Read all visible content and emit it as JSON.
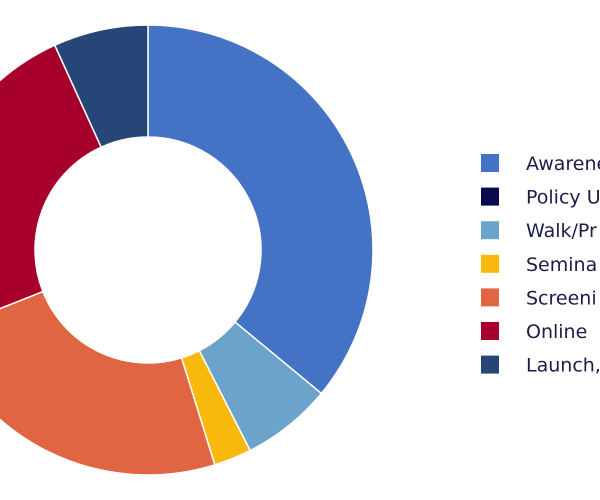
{
  "chart_data": {
    "type": "pie",
    "donut": true,
    "title": "",
    "slices": [
      {
        "label": "Awarenes",
        "value": 36.0,
        "color": "#4472c4"
      },
      {
        "label": "Policy U",
        "value": 0.0,
        "color": "#0b0a4c"
      },
      {
        "label": "Walk/Pr",
        "value": 6.5,
        "color": "#6ba3cb"
      },
      {
        "label": "Semina",
        "value": 2.7,
        "color": "#f9b90c"
      },
      {
        "label": "Screeni",
        "value": 23.8,
        "color": "#df6543"
      },
      {
        "label": "Online",
        "value": 24.2,
        "color": "#a7002c"
      },
      {
        "label": "Launch,",
        "value": 6.8,
        "color": "#254677"
      }
    ],
    "legend_position": "right"
  }
}
